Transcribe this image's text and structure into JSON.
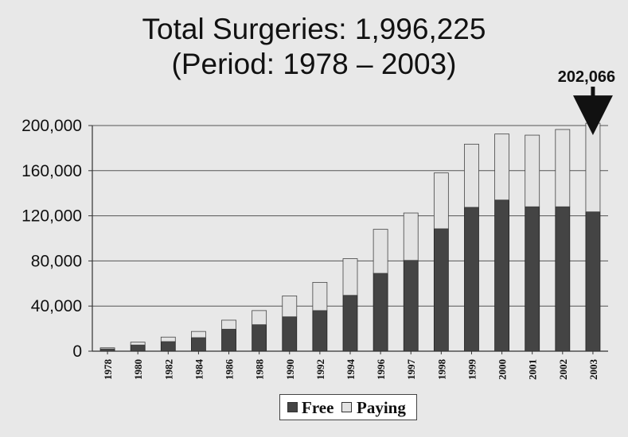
{
  "title_line1": "Total Surgeries: 1,996,225",
  "title_line2": "(Period: 1978 – 2003)",
  "colors": {
    "free": "#444444",
    "paying": "#e3e3e3",
    "background": "#e8e8e8",
    "axis": "#333333"
  },
  "chart_data": {
    "type": "bar",
    "stacked": true,
    "title": "Total Surgeries: 1,996,225 (Period: 1978 – 2003)",
    "categories": [
      "1978",
      "1980",
      "1982",
      "1984",
      "1986",
      "1988",
      "1990",
      "1992",
      "1994",
      "1996",
      "1997",
      "1998",
      "1999",
      "2000",
      "2001",
      "2002",
      "2003"
    ],
    "series": [
      {
        "name": "Free",
        "values": [
          2000,
          5500,
          8500,
          12000,
          19500,
          23500,
          30500,
          36000,
          49500,
          69000,
          80500,
          108500,
          127500,
          134000,
          128000,
          128000,
          123500
        ]
      },
      {
        "name": "Paying",
        "values": [
          1000,
          2500,
          4000,
          5500,
          8000,
          12500,
          18500,
          25000,
          32500,
          39000,
          42000,
          49500,
          56000,
          58500,
          63500,
          68500,
          78566
        ]
      }
    ],
    "ylim": [
      0,
      200000
    ],
    "yticks": [
      "0",
      "40,000",
      "80,000",
      "120,000",
      "160,000",
      "200,000"
    ],
    "ytick_values": [
      0,
      40000,
      80000,
      120000,
      160000,
      200000
    ],
    "grid": true,
    "legend_position": "bottom",
    "annotation": {
      "text": "202,066",
      "category": "2003"
    },
    "xlabel": "",
    "ylabel": ""
  }
}
